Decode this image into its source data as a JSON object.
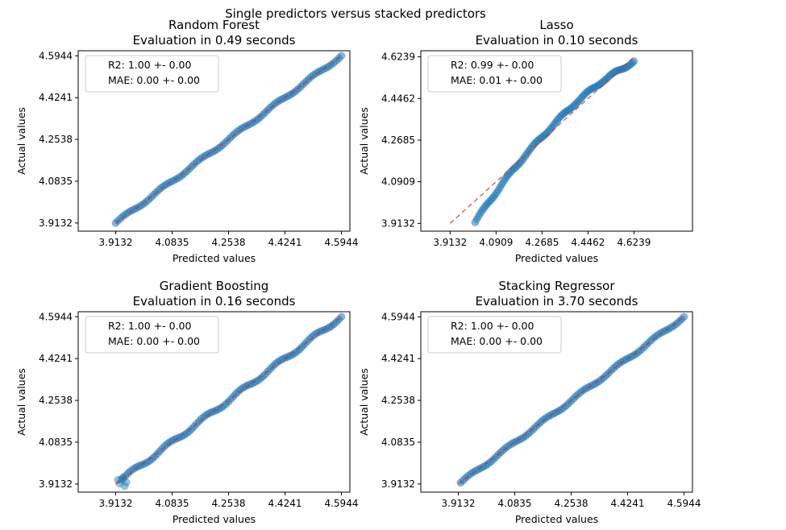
{
  "suptitle": "Single predictors versus stacked predictors",
  "chart_data": [
    {
      "type": "scatter",
      "name": "Random Forest",
      "title": "Random Forest",
      "subtitle": "Evaluation in 0.49 seconds",
      "xlabel": "Predicted values",
      "ylabel": "Actual values",
      "xticks": [
        "3.9132",
        "4.0835",
        "4.2538",
        "4.4241",
        "4.5944"
      ],
      "yticks": [
        "3.9132",
        "4.0835",
        "4.2538",
        "4.4241",
        "4.5944"
      ],
      "xlim": [
        3.8,
        4.62
      ],
      "ylim": [
        3.88,
        4.615
      ],
      "legend": [
        "R2: 1.00 +- 0.00",
        "MAE: 0.00 +- 0.00"
      ],
      "legend_loc": "upper left",
      "diagonal": [
        3.9132,
        4.5944
      ],
      "curve": [
        [
          3.9132,
          3.9132
        ],
        [
          4.5944,
          4.5944
        ]
      ],
      "points_spread": 0.006,
      "x_end": 4.5944,
      "colors": {
        "points": "#1f77b4",
        "diagonal": "#d62728"
      }
    },
    {
      "type": "scatter",
      "name": "Lasso",
      "title": "Lasso",
      "subtitle": "Evaluation in 0.10 seconds",
      "xlabel": "Predicted values",
      "ylabel": "Actual values",
      "xticks": [
        "3.9132",
        "4.0909",
        "4.2685",
        "4.4462",
        "4.6239"
      ],
      "yticks": [
        "3.9132",
        "4.0909",
        "4.2685",
        "4.4462",
        "4.6239"
      ],
      "xlim": [
        3.8,
        4.85
      ],
      "ylim": [
        3.88,
        4.65
      ],
      "legend": [
        "R2: 0.99 +- 0.00",
        "MAE: 0.01 +- 0.00"
      ],
      "legend_loc": "upper left",
      "diagonal": [
        3.9132,
        4.6239
      ],
      "curve": [
        [
          4.01,
          3.918
        ],
        [
          4.06,
          4.0
        ],
        [
          4.12,
          4.09
        ],
        [
          4.2,
          4.2
        ],
        [
          4.3,
          4.32
        ],
        [
          4.4,
          4.43
        ],
        [
          4.5,
          4.52
        ],
        [
          4.6239,
          4.605
        ]
      ],
      "points_spread": 0.006,
      "x_end": 4.6239,
      "colors": {
        "points": "#1f77b4",
        "diagonal": "#d62728"
      }
    },
    {
      "type": "scatter",
      "name": "Gradient Boosting",
      "title": "Gradient Boosting",
      "subtitle": "Evaluation in 0.16 seconds",
      "xlabel": "Predicted values",
      "ylabel": "Actual values",
      "xticks": [
        "3.9132",
        "4.0835",
        "4.2538",
        "4.4241",
        "4.5944"
      ],
      "yticks": [
        "3.9132",
        "4.0835",
        "4.2538",
        "4.4241",
        "4.5944"
      ],
      "xlim": [
        3.8,
        4.62
      ],
      "ylim": [
        3.88,
        4.615
      ],
      "legend": [
        "R2: 1.00 +- 0.00",
        "MAE: 0.00 +- 0.00"
      ],
      "legend_loc": "upper left",
      "diagonal": [
        3.9132,
        4.5944
      ],
      "curve": [
        [
          3.935,
          3.935
        ],
        [
          4.5944,
          4.5944
        ]
      ],
      "points_spread": 0.008,
      "x_end": 4.5944,
      "colors": {
        "points": "#1f77b4",
        "diagonal": "#d62728"
      }
    },
    {
      "type": "scatter",
      "name": "Stacking Regressor",
      "title": "Stacking Regressor",
      "subtitle": "Evaluation in 3.70 seconds",
      "xlabel": "Predicted values",
      "ylabel": "Actual values",
      "xticks": [
        "3.9132",
        "4.0835",
        "4.2538",
        "4.4241",
        "4.5944"
      ],
      "yticks": [
        "3.9132",
        "4.0835",
        "4.2538",
        "4.4241",
        "4.5944"
      ],
      "xlim": [
        3.8,
        4.62
      ],
      "ylim": [
        3.88,
        4.615
      ],
      "legend": [
        "R2: 1.00 +- 0.00",
        "MAE: 0.00 +- 0.00"
      ],
      "legend_loc": "upper left",
      "diagonal": [
        3.9132,
        4.5944
      ],
      "curve": [
        [
          3.92,
          3.918
        ],
        [
          4.5944,
          4.5944
        ]
      ],
      "points_spread": 0.006,
      "x_end": 4.5944,
      "colors": {
        "points": "#1f77b4",
        "diagonal": "#d62728"
      }
    }
  ]
}
